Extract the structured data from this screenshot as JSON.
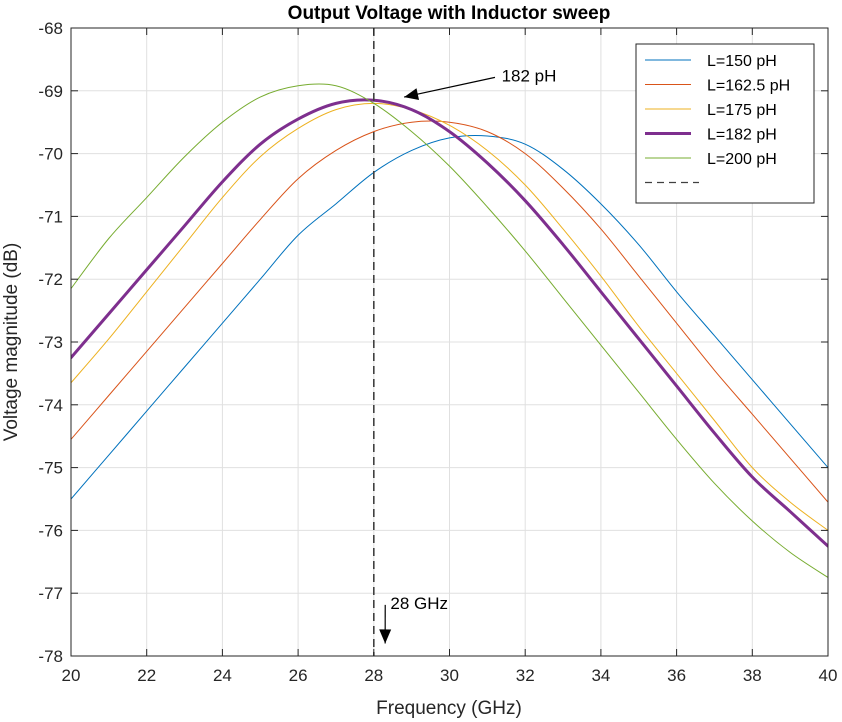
{
  "chart_data": {
    "type": "line",
    "title": "Output Voltage with Inductor sweep",
    "xlabel": "Frequency (GHz)",
    "ylabel": "Voltage magnitude (dB)",
    "xlim": [
      20,
      40
    ],
    "ylim": [
      -78,
      -68
    ],
    "xticks": [
      20,
      22,
      24,
      26,
      28,
      30,
      32,
      34,
      36,
      38,
      40
    ],
    "yticks": [
      -68,
      -69,
      -70,
      -71,
      -72,
      -73,
      -74,
      -75,
      -76,
      -77,
      -78
    ],
    "grid": true,
    "legend_position": "top-right",
    "x": [
      20,
      21,
      22,
      23,
      24,
      25,
      26,
      27,
      28,
      29,
      30,
      31,
      32,
      33,
      34,
      35,
      36,
      37,
      38,
      39,
      40
    ],
    "series": [
      {
        "name": "L=150 pH",
        "color": "#0072BD",
        "width": 1,
        "values": [
          -75.5,
          -74.8,
          -74.1,
          -73.4,
          -72.7,
          -72.0,
          -71.3,
          -70.8,
          -70.3,
          -69.95,
          -69.75,
          -69.72,
          -69.85,
          -70.25,
          -70.8,
          -71.45,
          -72.2,
          -72.9,
          -73.6,
          -74.3,
          -75.0
        ]
      },
      {
        "name": "L=162.5 pH",
        "color": "#D95319",
        "width": 1,
        "values": [
          -74.55,
          -73.85,
          -73.15,
          -72.45,
          -71.75,
          -71.05,
          -70.4,
          -69.95,
          -69.65,
          -69.5,
          -69.5,
          -69.65,
          -70.0,
          -70.55,
          -71.2,
          -71.95,
          -72.7,
          -73.45,
          -74.15,
          -74.85,
          -75.55
        ]
      },
      {
        "name": "L=175 pH",
        "color": "#EDB120",
        "width": 1,
        "values": [
          -73.65,
          -72.95,
          -72.2,
          -71.45,
          -70.7,
          -70.05,
          -69.6,
          -69.3,
          -69.2,
          -69.3,
          -69.55,
          -69.95,
          -70.5,
          -71.2,
          -71.95,
          -72.75,
          -73.5,
          -74.25,
          -75.0,
          -75.55,
          -76.0
        ]
      },
      {
        "name": "L=182 pH",
        "color": "#7E2F8E",
        "width": 3,
        "values": [
          -73.25,
          -72.55,
          -71.85,
          -71.15,
          -70.45,
          -69.85,
          -69.45,
          -69.2,
          -69.15,
          -69.3,
          -69.65,
          -70.15,
          -70.75,
          -71.45,
          -72.2,
          -72.95,
          -73.7,
          -74.45,
          -75.15,
          -75.7,
          -76.25
        ]
      },
      {
        "name": "L=200 pH",
        "color": "#77AC30",
        "width": 1,
        "values": [
          -72.15,
          -71.35,
          -70.7,
          -70.05,
          -69.5,
          -69.1,
          -68.92,
          -68.92,
          -69.2,
          -69.65,
          -70.2,
          -70.85,
          -71.55,
          -72.3,
          -73.05,
          -73.8,
          -74.55,
          -75.25,
          -75.85,
          -76.35,
          -76.75
        ]
      }
    ],
    "vline": {
      "x": 28,
      "name": "",
      "color": "#404040"
    },
    "annotations": [
      {
        "text": "182 pH",
        "arrow_to": [
          28.8,
          -69.1
        ],
        "text_at": [
          32.1,
          -68.85
        ]
      },
      {
        "text": "28 GHz",
        "arrow_to": [
          28.3,
          -77.8
        ],
        "text_at": [
          29.2,
          -77.25
        ]
      }
    ]
  }
}
